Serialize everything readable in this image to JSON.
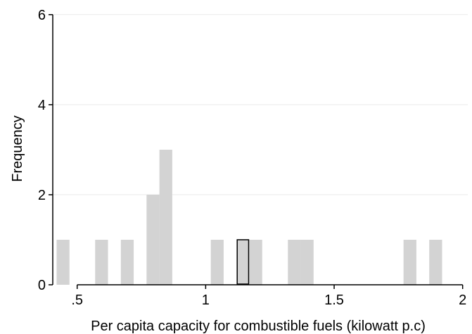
{
  "chart_data": {
    "type": "bar",
    "title": "",
    "xlabel": "Per capita capacity for combustible fuels (kilowatt p.c)",
    "ylabel": "Frequency",
    "xlim": [
      0.405,
      2.02
    ],
    "ylim": [
      0,
      6.2
    ],
    "x_ticks": [
      {
        "value": 0.5,
        "label": ".5"
      },
      {
        "value": 1,
        "label": "1"
      },
      {
        "value": 1.5,
        "label": "1.5"
      },
      {
        "value": 2,
        "label": "2"
      }
    ],
    "y_ticks": [
      {
        "value": 0,
        "label": "0"
      },
      {
        "value": 2,
        "label": "2"
      },
      {
        "value": 4,
        "label": "4"
      },
      {
        "value": 6,
        "label": "6"
      }
    ],
    "grid": "horizontal",
    "bin_width": 0.05,
    "bars": [
      {
        "x0": 0.42,
        "x1": 0.47,
        "value": 1
      },
      {
        "x0": 0.57,
        "x1": 0.62,
        "value": 1
      },
      {
        "x0": 0.67,
        "x1": 0.72,
        "value": 1
      },
      {
        "x0": 0.77,
        "x1": 0.82,
        "value": 2
      },
      {
        "x0": 0.82,
        "x1": 0.87,
        "value": 3
      },
      {
        "x0": 1.02,
        "x1": 1.07,
        "value": 1
      },
      {
        "x0": 1.12,
        "x1": 1.17,
        "value": 1,
        "highlighted": true
      },
      {
        "x0": 1.17,
        "x1": 1.22,
        "value": 1
      },
      {
        "x0": 1.32,
        "x1": 1.37,
        "value": 1
      },
      {
        "x0": 1.37,
        "x1": 1.42,
        "value": 1
      },
      {
        "x0": 1.77,
        "x1": 1.82,
        "value": 1
      },
      {
        "x0": 1.87,
        "x1": 1.92,
        "value": 1
      }
    ],
    "colors": {
      "bar_fill": "#d3d3d3",
      "highlight_fill": "#d3d3d3",
      "highlight_stroke": "#000000",
      "grid": "#eaeaea",
      "axis": "#000000"
    }
  }
}
